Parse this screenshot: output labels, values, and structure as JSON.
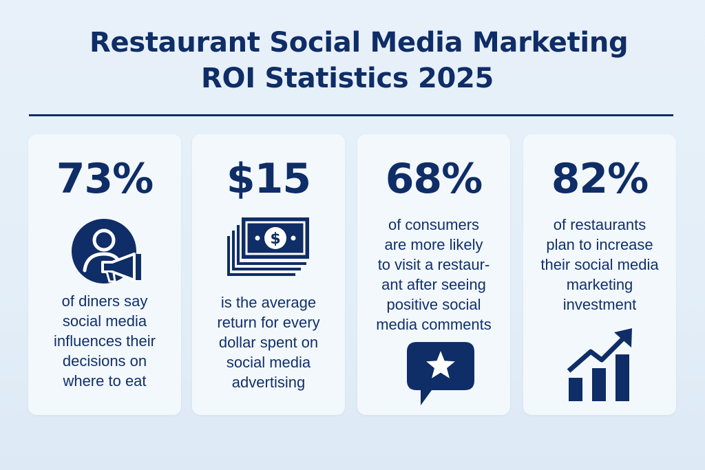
{
  "title": {
    "line1": "Restaurant Social Media Marketing",
    "line2": "ROI Statistics 2025"
  },
  "colors": {
    "primary": "#0f2d66",
    "card": "#f4f9fd",
    "background": "#e5eff8"
  },
  "cards": [
    {
      "stat": "73%",
      "icon": "person-megaphone-icon",
      "text": "of diners say\nsocial media\ninfluences their\ndecisions on\nwhere to eat"
    },
    {
      "stat": "$15",
      "icon": "money-stack-icon",
      "text": "is the average\nreturn for every\ndollar spent on\nsocial media\nadvertising"
    },
    {
      "stat": "68%",
      "icon": "star-chat-bubble-icon",
      "text": "of consumers\nare more likely\nto visit a restaur-\nant after seeing\npositive social\nmedia comments"
    },
    {
      "stat": "82%",
      "icon": "growth-bar-chart-icon",
      "text": "of restaurants\nplan to increase\ntheir social media\nmarketing\ninvestment"
    }
  ]
}
